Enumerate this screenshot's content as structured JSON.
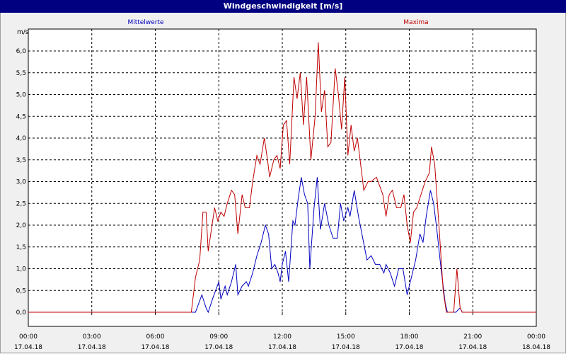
{
  "window": {
    "title": "Windgeschwindigkeit [m/s]"
  },
  "chart_data": {
    "type": "line",
    "title": "Windgeschwindigkeit [m/s]",
    "ylabel": "m/s",
    "ylim": [
      0,
      6.5
    ],
    "y_ticks": [
      "0,0",
      "0,5",
      "1,0",
      "1,5",
      "2,0",
      "2,5",
      "3,0",
      "3,5",
      "4,0",
      "4,5",
      "5,0",
      "5,5",
      "6,0"
    ],
    "x_ticks": [
      {
        "time": "00:00",
        "date": "17.04.18"
      },
      {
        "time": "03:00",
        "date": "17.04.18"
      },
      {
        "time": "06:00",
        "date": "17.04.18"
      },
      {
        "time": "09:00",
        "date": "17.04.18"
      },
      {
        "time": "12:00",
        "date": "17.04.18"
      },
      {
        "time": "15:00",
        "date": "17.04.18"
      },
      {
        "time": "18:00",
        "date": "17.04.18"
      },
      {
        "time": "21:00",
        "date": "17.04.18"
      },
      {
        "time": "00:00",
        "date": "18.04.18"
      }
    ],
    "x_unit": "hours since 17.04.18 00:00",
    "xlim": [
      0,
      24
    ],
    "grid": true,
    "series": [
      {
        "name": "Mittelwerte",
        "color": "#0000c0",
        "points": [
          [
            0,
            0
          ],
          [
            7.9,
            0
          ],
          [
            8.2,
            0.4
          ],
          [
            8.4,
            0.1
          ],
          [
            8.5,
            0
          ],
          [
            8.7,
            0.3
          ],
          [
            9.0,
            0.7
          ],
          [
            9.1,
            0.3
          ],
          [
            9.3,
            0.6
          ],
          [
            9.4,
            0.4
          ],
          [
            9.6,
            0.7
          ],
          [
            9.8,
            1.1
          ],
          [
            9.9,
            0.4
          ],
          [
            10.1,
            0.6
          ],
          [
            10.3,
            0.7
          ],
          [
            10.4,
            0.6
          ],
          [
            10.6,
            0.9
          ],
          [
            10.8,
            1.3
          ],
          [
            11.0,
            1.6
          ],
          [
            11.2,
            2.0
          ],
          [
            11.35,
            1.8
          ],
          [
            11.5,
            1.0
          ],
          [
            11.65,
            1.1
          ],
          [
            11.8,
            0.9
          ],
          [
            11.9,
            0.7
          ],
          [
            12.0,
            1.1
          ],
          [
            12.15,
            1.4
          ],
          [
            12.3,
            0.7
          ],
          [
            12.5,
            2.1
          ],
          [
            12.6,
            2.0
          ],
          [
            12.75,
            2.6
          ],
          [
            12.9,
            3.1
          ],
          [
            13.05,
            2.7
          ],
          [
            13.2,
            2.5
          ],
          [
            13.3,
            1.0
          ],
          [
            13.5,
            2.4
          ],
          [
            13.65,
            3.1
          ],
          [
            13.8,
            1.9
          ],
          [
            14.0,
            2.5
          ],
          [
            14.2,
            2.0
          ],
          [
            14.4,
            1.7
          ],
          [
            14.6,
            1.7
          ],
          [
            14.75,
            2.5
          ],
          [
            14.9,
            2.1
          ],
          [
            15.1,
            2.4
          ],
          [
            15.2,
            2.2
          ],
          [
            15.4,
            2.8
          ],
          [
            15.6,
            2.2
          ],
          [
            15.8,
            1.7
          ],
          [
            16.0,
            1.2
          ],
          [
            16.2,
            1.3
          ],
          [
            16.4,
            1.1
          ],
          [
            16.6,
            1.1
          ],
          [
            16.8,
            0.9
          ],
          [
            16.9,
            1.1
          ],
          [
            17.1,
            0.9
          ],
          [
            17.3,
            0.6
          ],
          [
            17.5,
            1.0
          ],
          [
            17.7,
            1.0
          ],
          [
            17.9,
            0.4
          ],
          [
            18.05,
            0.7
          ],
          [
            18.3,
            1.2
          ],
          [
            18.5,
            1.8
          ],
          [
            18.65,
            1.6
          ],
          [
            18.8,
            2.2
          ],
          [
            19.0,
            2.8
          ],
          [
            19.15,
            2.5
          ],
          [
            19.3,
            1.9
          ],
          [
            19.5,
            1.0
          ],
          [
            19.7,
            0.2
          ],
          [
            19.8,
            0
          ],
          [
            20.2,
            0
          ],
          [
            20.4,
            0.1
          ],
          [
            20.5,
            0
          ],
          [
            24,
            0
          ]
        ]
      },
      {
        "name": "Maxima",
        "color": "#c00000",
        "points": [
          [
            0,
            0
          ],
          [
            7.7,
            0
          ],
          [
            7.9,
            0.8
          ],
          [
            8.1,
            1.2
          ],
          [
            8.25,
            2.3
          ],
          [
            8.4,
            2.3
          ],
          [
            8.5,
            1.4
          ],
          [
            8.65,
            1.9
          ],
          [
            8.8,
            2.4
          ],
          [
            8.95,
            2.1
          ],
          [
            9.1,
            2.3
          ],
          [
            9.25,
            2.2
          ],
          [
            9.4,
            2.5
          ],
          [
            9.6,
            2.8
          ],
          [
            9.75,
            2.7
          ],
          [
            9.9,
            1.8
          ],
          [
            10.1,
            2.7
          ],
          [
            10.25,
            2.4
          ],
          [
            10.45,
            2.4
          ],
          [
            10.6,
            3.0
          ],
          [
            10.8,
            3.6
          ],
          [
            10.95,
            3.4
          ],
          [
            11.15,
            4.0
          ],
          [
            11.3,
            3.5
          ],
          [
            11.4,
            3.1
          ],
          [
            11.6,
            3.5
          ],
          [
            11.75,
            3.6
          ],
          [
            11.9,
            3.3
          ],
          [
            12.05,
            4.3
          ],
          [
            12.2,
            4.4
          ],
          [
            12.35,
            3.4
          ],
          [
            12.55,
            5.4
          ],
          [
            12.7,
            4.9
          ],
          [
            12.85,
            5.5
          ],
          [
            13.0,
            4.3
          ],
          [
            13.15,
            5.4
          ],
          [
            13.35,
            3.5
          ],
          [
            13.55,
            4.5
          ],
          [
            13.7,
            6.2
          ],
          [
            13.85,
            4.6
          ],
          [
            14.0,
            5.1
          ],
          [
            14.15,
            3.8
          ],
          [
            14.3,
            3.9
          ],
          [
            14.5,
            5.6
          ],
          [
            14.65,
            5.0
          ],
          [
            14.8,
            4.2
          ],
          [
            14.95,
            5.4
          ],
          [
            15.1,
            3.6
          ],
          [
            15.25,
            4.3
          ],
          [
            15.4,
            3.7
          ],
          [
            15.55,
            4.0
          ],
          [
            15.7,
            3.4
          ],
          [
            15.85,
            2.8
          ],
          [
            16.05,
            3.0
          ],
          [
            16.2,
            3.0
          ],
          [
            16.45,
            3.1
          ],
          [
            16.6,
            2.9
          ],
          [
            16.75,
            2.7
          ],
          [
            16.9,
            2.2
          ],
          [
            17.05,
            2.7
          ],
          [
            17.2,
            2.8
          ],
          [
            17.4,
            2.4
          ],
          [
            17.6,
            2.4
          ],
          [
            17.75,
            2.7
          ],
          [
            17.9,
            2.0
          ],
          [
            18.05,
            1.6
          ],
          [
            18.2,
            2.3
          ],
          [
            18.35,
            2.4
          ],
          [
            18.55,
            2.7
          ],
          [
            18.75,
            3.0
          ],
          [
            18.95,
            3.2
          ],
          [
            19.05,
            3.8
          ],
          [
            19.2,
            3.4
          ],
          [
            19.4,
            2.0
          ],
          [
            19.6,
            0.5
          ],
          [
            19.75,
            0
          ],
          [
            20.1,
            0
          ],
          [
            20.25,
            1.0
          ],
          [
            20.4,
            0.1
          ],
          [
            20.5,
            0
          ],
          [
            24,
            0
          ]
        ]
      }
    ]
  }
}
